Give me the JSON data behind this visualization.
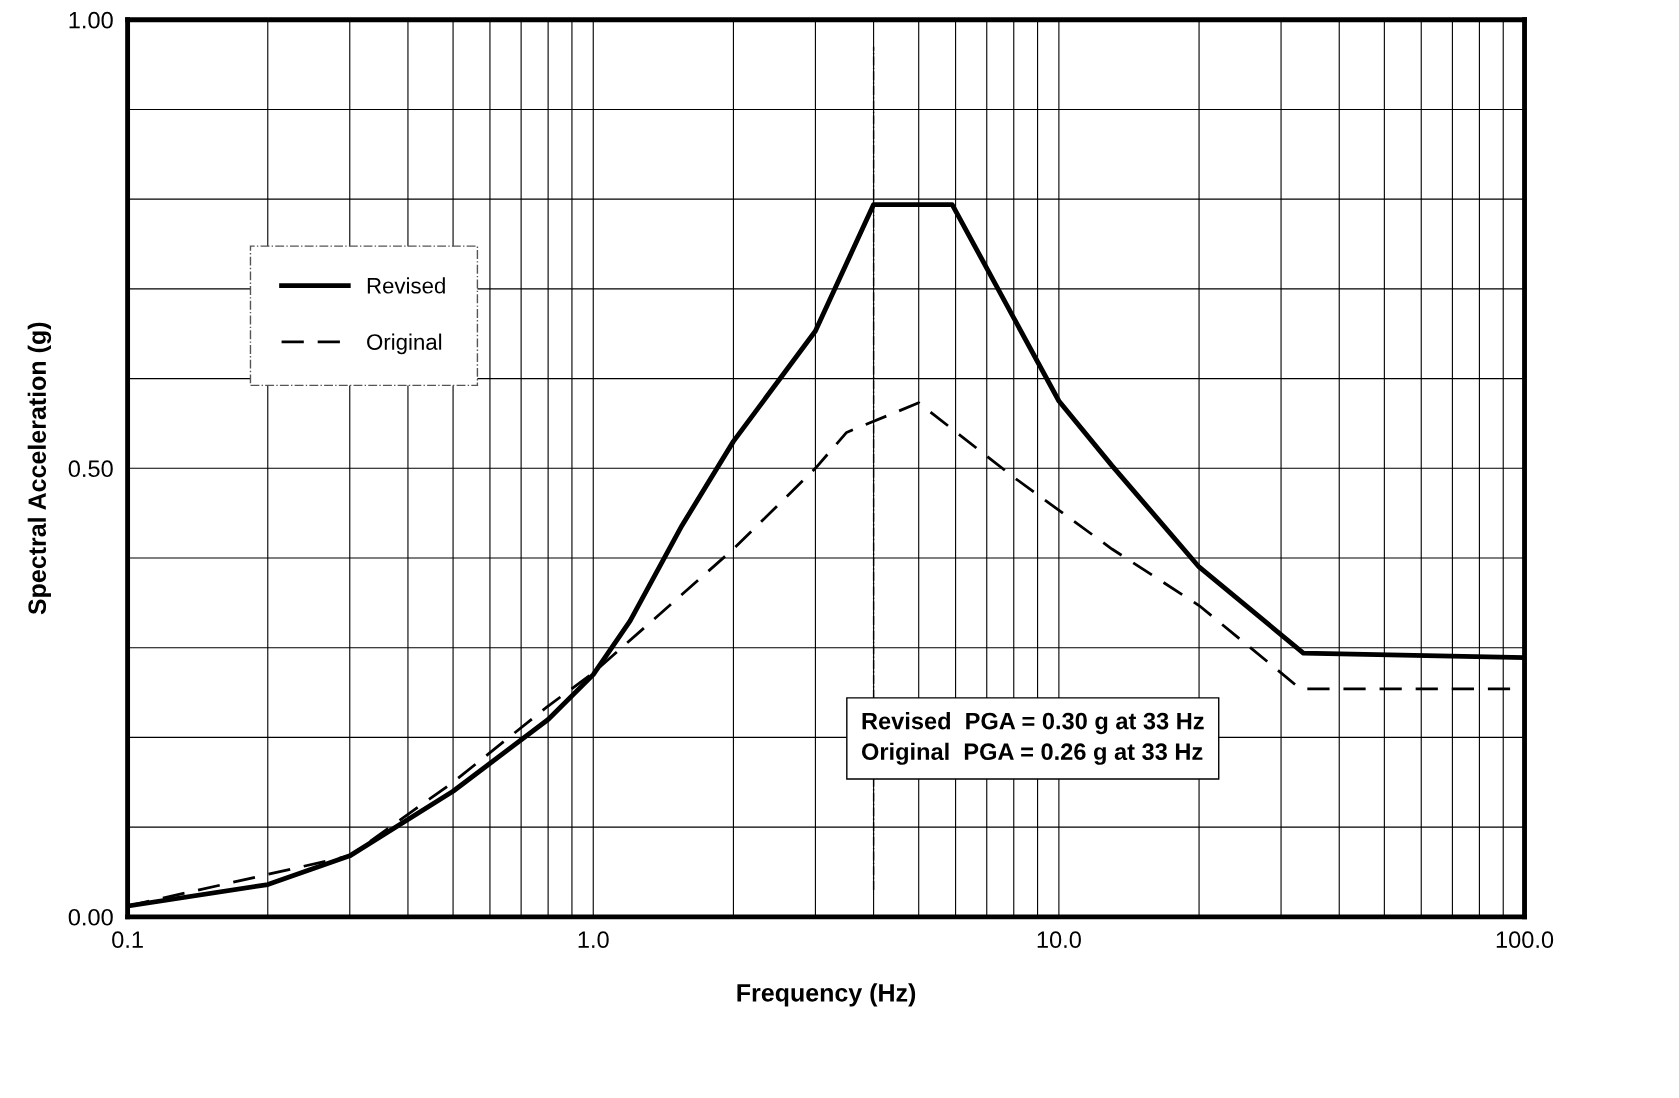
{
  "chart_data": {
    "type": "line",
    "xlabel": "Frequency (Hz)",
    "ylabel": "Spectral Acceleration (g)",
    "log": "x",
    "xlim": [
      0.1,
      100
    ],
    "ylim": [
      0,
      1
    ],
    "xticks": [
      {
        "value": 0.1,
        "label": "0.1"
      },
      {
        "value": 0.2,
        "label": null
      },
      {
        "value": 0.3,
        "label": null
      },
      {
        "value": 0.4,
        "label": null
      },
      {
        "value": 0.5,
        "label": null
      },
      {
        "value": 0.6,
        "label": null
      },
      {
        "value": 0.7,
        "label": null
      },
      {
        "value": 0.8,
        "label": null
      },
      {
        "value": 0.9,
        "label": null
      },
      {
        "value": 1,
        "label": "1.0"
      },
      {
        "value": 2,
        "label": null
      },
      {
        "value": 3,
        "label": null
      },
      {
        "value": 4,
        "label": null
      },
      {
        "value": 5,
        "label": null
      },
      {
        "value": 6,
        "label": null
      },
      {
        "value": 7,
        "label": null
      },
      {
        "value": 8,
        "label": null
      },
      {
        "value": 9,
        "label": null
      },
      {
        "value": 10,
        "label": "10.0"
      },
      {
        "value": 20,
        "label": null
      },
      {
        "value": 30,
        "label": null
      },
      {
        "value": 40,
        "label": null
      },
      {
        "value": 50,
        "label": null
      },
      {
        "value": 60,
        "label": null
      },
      {
        "value": 70,
        "label": null
      },
      {
        "value": 80,
        "label": null
      },
      {
        "value": 90,
        "label": null
      },
      {
        "value": 100,
        "label": "100.0"
      }
    ],
    "yticks": [
      {
        "value": 0,
        "label": "0.00"
      },
      {
        "value": 0.1,
        "label": null
      },
      {
        "value": 0.2,
        "label": null
      },
      {
        "value": 0.3,
        "label": null
      },
      {
        "value": 0.4,
        "label": null
      },
      {
        "value": 0.5,
        "label": "0.50"
      },
      {
        "value": 0.6,
        "label": null
      },
      {
        "value": 0.7,
        "label": null
      },
      {
        "value": 0.8,
        "label": null
      },
      {
        "value": 0.9,
        "label": null
      },
      {
        "value": 1,
        "label": "1.00"
      }
    ],
    "grid": true,
    "legend": "top left",
    "series": [
      {
        "name": "Revised",
        "color": "#000000",
        "line_style": "solid",
        "x": [
          0.1,
          0.2,
          0.3,
          0.5,
          0.8,
          1.0,
          1.2,
          1.55,
          2.0,
          3.0,
          4.0,
          5.9,
          10,
          13,
          20,
          33.5,
          100
        ],
        "values": [
          0.012,
          0.036,
          0.068,
          0.14,
          0.22,
          0.27,
          0.33,
          0.436,
          0.53,
          0.653,
          0.794,
          0.794,
          0.575,
          0.503,
          0.39,
          0.294,
          0.289
        ]
      },
      {
        "name": "Original",
        "color": "#000000",
        "line_style": "dashed",
        "x": [
          0.1,
          0.3,
          0.5,
          0.8,
          1.0,
          2.0,
          3.0,
          3.5,
          5.0,
          8,
          13,
          20,
          30,
          33,
          100
        ],
        "values": [
          0.012,
          0.068,
          0.15,
          0.235,
          0.272,
          0.41,
          0.5,
          0.54,
          0.573,
          0.49,
          0.41,
          0.347,
          0.272,
          0.254,
          0.254
        ]
      }
    ],
    "ref_lines": [
      {
        "axis": "x",
        "value": 4.0,
        "label": null,
        "line_style": "dashdot",
        "color": "#000000"
      }
    ],
    "annotations": [
      "Revised  PGA = 0.30 g at 33 Hz\nOriginal  PGA = 0.26 g at 33 Hz"
    ]
  }
}
